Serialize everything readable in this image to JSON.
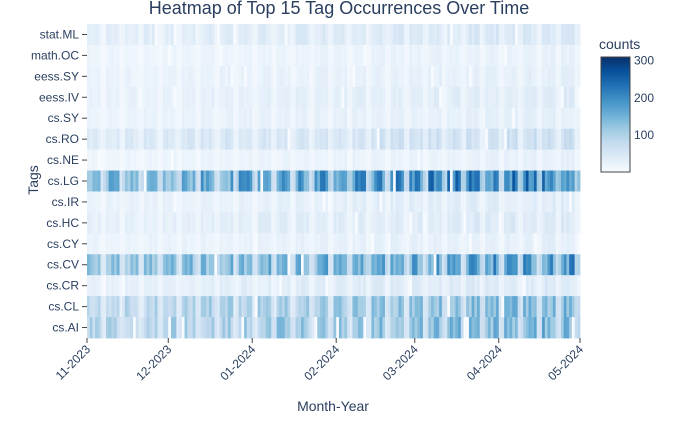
{
  "chart_data": {
    "type": "heatmap",
    "title": "Heatmap of Top 15 Tag Occurrences Over Time",
    "xlabel": "Month-Year",
    "ylabel": "Tags",
    "x_tick_labels": [
      "11-2023",
      "12-2023",
      "01-2024",
      "02-2024",
      "03-2024",
      "04-2024",
      "05-2024"
    ],
    "x_range_days": 182,
    "tags": [
      "stat.ML",
      "math.OC",
      "eess.SY",
      "eess.IV",
      "cs.SY",
      "cs.RO",
      "cs.NE",
      "cs.LG",
      "cs.IR",
      "cs.HC",
      "cs.CY",
      "cs.CV",
      "cs.CR",
      "cs.CL",
      "cs.AI"
    ],
    "approx_row_mean_counts": {
      "stat.ML": 40,
      "math.OC": 20,
      "eess.SY": 25,
      "eess.IV": 30,
      "cs.SY": 25,
      "cs.RO": 55,
      "cs.NE": 20,
      "cs.LG": 180,
      "cs.IR": 30,
      "cs.HC": 35,
      "cs.CY": 25,
      "cs.CV": 150,
      "cs.CR": 35,
      "cs.CL": 110,
      "cs.AI": 120
    },
    "colorbar": {
      "title": "counts",
      "ticks": [
        100,
        200,
        300
      ],
      "min": 0,
      "max": 310,
      "colorscale": [
        "#f7fbff",
        "#deebf7",
        "#c6dbef",
        "#9ecae1",
        "#6baed6",
        "#4292c6",
        "#2171b5",
        "#08519c",
        "#08306b"
      ]
    }
  }
}
